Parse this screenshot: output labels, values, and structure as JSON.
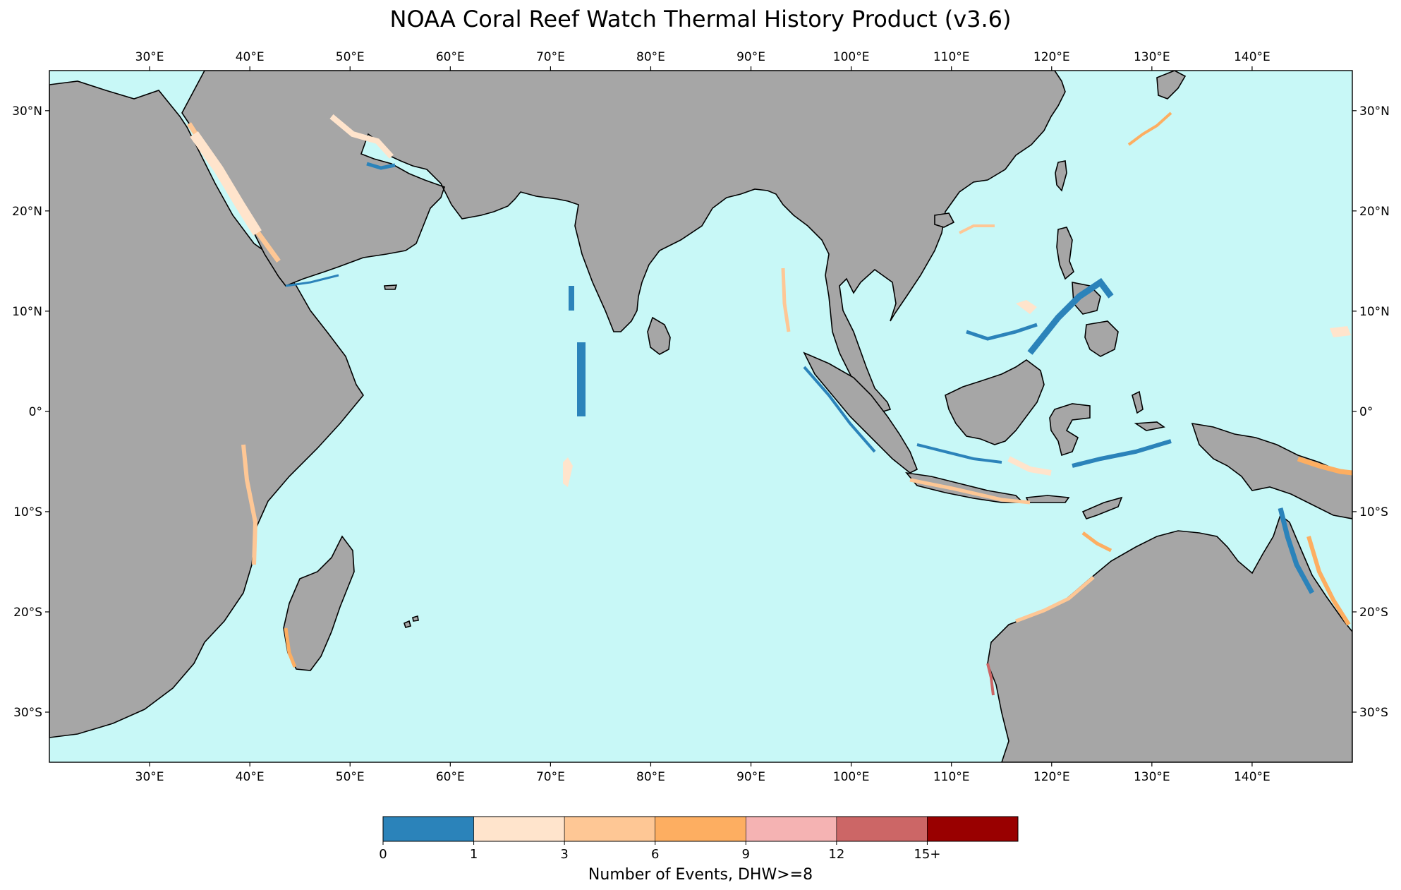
{
  "title": "NOAA Coral Reef Watch Thermal History Product (v3.6)",
  "map": {
    "lon_range": [
      20,
      150
    ],
    "lat_range": [
      -35,
      34
    ],
    "lon_ticks": [
      {
        "value": 30,
        "label": "30°E"
      },
      {
        "value": 40,
        "label": "40°E"
      },
      {
        "value": 50,
        "label": "50°E"
      },
      {
        "value": 60,
        "label": "60°E"
      },
      {
        "value": 70,
        "label": "70°E"
      },
      {
        "value": 80,
        "label": "80°E"
      },
      {
        "value": 90,
        "label": "90°E"
      },
      {
        "value": 100,
        "label": "100°E"
      },
      {
        "value": 110,
        "label": "110°E"
      },
      {
        "value": 120,
        "label": "120°E"
      },
      {
        "value": 130,
        "label": "130°E"
      },
      {
        "value": 140,
        "label": "140°E"
      }
    ],
    "lat_ticks": [
      {
        "value": 30,
        "label": "30°N"
      },
      {
        "value": 20,
        "label": "20°N"
      },
      {
        "value": 10,
        "label": "10°N"
      },
      {
        "value": 0,
        "label": "0°"
      },
      {
        "value": -10,
        "label": "10°S"
      },
      {
        "value": -20,
        "label": "20°S"
      },
      {
        "value": -30,
        "label": "30°S"
      }
    ],
    "colors": {
      "ocean": "#c8f8f7",
      "land": "#a6a6a6",
      "coast": "#000000"
    }
  },
  "colorbar": {
    "title": "Number of Events, DHW>=8",
    "tick_labels": [
      "0",
      "1",
      "3",
      "6",
      "9",
      "12",
      "15+"
    ],
    "bins": [
      {
        "range": "0-1",
        "color": "#2b83ba"
      },
      {
        "range": "1-3",
        "color": "#ffe4cc"
      },
      {
        "range": "3-6",
        "color": "#fec795"
      },
      {
        "range": "6-9",
        "color": "#fdae61"
      },
      {
        "range": "9-12",
        "color": "#f5b3b3"
      },
      {
        "range": "12-15",
        "color": "#cc6666"
      },
      {
        "range": "15+",
        "color": "#990000"
      }
    ]
  }
}
